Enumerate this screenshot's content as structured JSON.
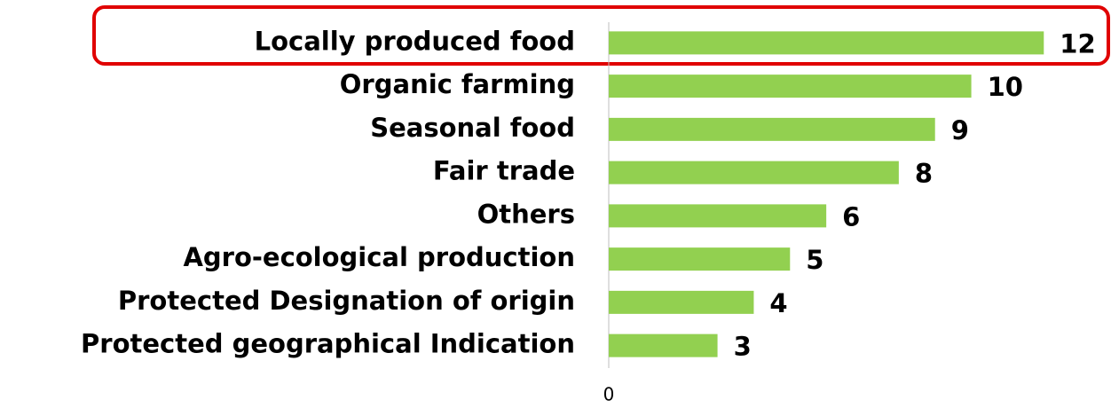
{
  "chart_data": {
    "type": "bar",
    "orientation": "horizontal",
    "categories": [
      "Locally produced food",
      "Organic farming",
      "Seasonal food",
      "Fair trade",
      "Others",
      "Agro-ecological production",
      "Protected Designation of origin",
      "Protected geographical Indication"
    ],
    "values": [
      12,
      10,
      9,
      8,
      6,
      5,
      4,
      3
    ],
    "color": "#92d050",
    "xlim": [
      0,
      14
    ],
    "xticks": [
      0
    ],
    "grid": false
  }
}
